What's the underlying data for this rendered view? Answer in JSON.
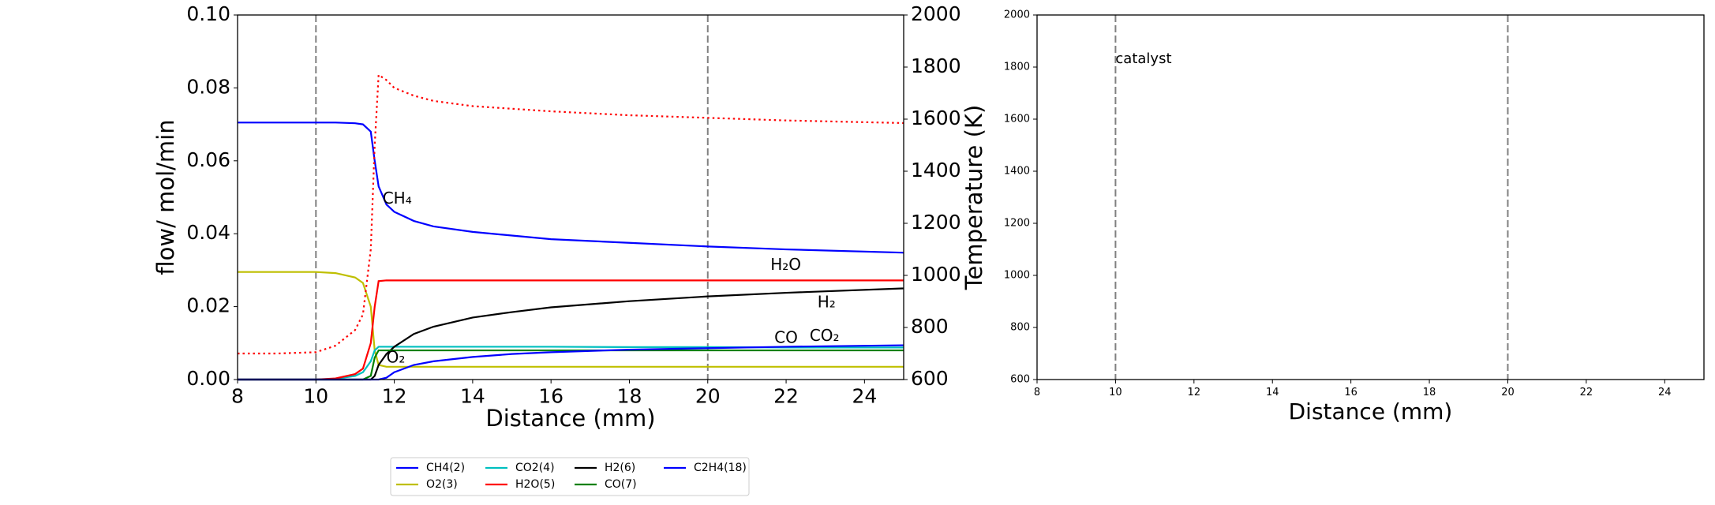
{
  "chart_data": [
    {
      "type": "line",
      "xlabel": "Distance (mm)",
      "ylabel": "flow/ mol/min",
      "y2label": "Temperature (K)",
      "xlim": [
        8,
        25
      ],
      "xticks": [
        8,
        10,
        12,
        14,
        16,
        18,
        20,
        22,
        24
      ],
      "ylim": [
        0,
        0.1
      ],
      "yticks": [
        {
          "value": 0,
          "label": "0.00"
        },
        {
          "value": 0.02,
          "label": "0.02"
        },
        {
          "value": 0.04,
          "label": "0.04"
        },
        {
          "value": 0.06,
          "label": "0.06"
        },
        {
          "value": 0.08,
          "label": "0.08"
        },
        {
          "value": 0.1,
          "label": "0.10"
        }
      ],
      "y2lim": [
        600,
        2000
      ],
      "y2ticks": [
        600,
        800,
        1000,
        1200,
        1400,
        1600,
        1800,
        2000
      ],
      "vlines": [
        10,
        20
      ],
      "x": [
        8,
        9,
        10,
        10.5,
        11,
        11.2,
        11.4,
        11.5,
        11.6,
        11.8,
        12,
        12.5,
        13,
        14,
        15,
        16,
        18,
        20,
        22,
        25
      ],
      "series": [
        {
          "name": "CH4(2)",
          "color": "#0000ff",
          "values": [
            0.0705,
            0.0705,
            0.0705,
            0.0705,
            0.0703,
            0.07,
            0.068,
            0.06,
            0.053,
            0.048,
            0.046,
            0.0435,
            0.042,
            0.0405,
            0.0395,
            0.0385,
            0.0375,
            0.0365,
            0.0357,
            0.0348
          ]
        },
        {
          "name": "O2(3)",
          "color": "#bfbf00",
          "values": [
            0.0295,
            0.0295,
            0.0295,
            0.0292,
            0.028,
            0.0265,
            0.02,
            0.008,
            0.004,
            0.0035,
            0.0035,
            0.0035,
            0.0035,
            0.0035,
            0.0035,
            0.0035,
            0.0035,
            0.0035,
            0.0035,
            0.0035
          ]
        },
        {
          "name": "CO2(4)",
          "color": "#00bfbf",
          "values": [
            0,
            0,
            0,
            0.0002,
            0.001,
            0.002,
            0.005,
            0.008,
            0.009,
            0.009,
            0.009,
            0.009,
            0.009,
            0.009,
            0.009,
            0.009,
            0.0089,
            0.0089,
            0.0088,
            0.0088
          ]
        },
        {
          "name": "H2O(5)",
          "color": "#ff0000",
          "values": [
            0,
            0,
            0,
            0.0003,
            0.0015,
            0.003,
            0.01,
            0.02,
            0.027,
            0.0272,
            0.0272,
            0.0272,
            0.0272,
            0.0272,
            0.0272,
            0.0272,
            0.0272,
            0.0272,
            0.0272,
            0.0272
          ]
        },
        {
          "name": "H2(6)",
          "color": "#000000",
          "values": [
            0,
            0,
            0,
            0,
            0,
            0,
            0,
            0.001,
            0.004,
            0.007,
            0.009,
            0.0125,
            0.0145,
            0.017,
            0.0185,
            0.0198,
            0.0215,
            0.0228,
            0.0238,
            0.025
          ]
        },
        {
          "name": "CO(7)",
          "color": "#008000",
          "values": [
            0,
            0,
            0,
            0,
            0,
            0,
            0.001,
            0.006,
            0.008,
            0.008,
            0.008,
            0.008,
            0.008,
            0.008,
            0.008,
            0.008,
            0.008,
            0.008,
            0.008,
            0.008
          ]
        },
        {
          "name": "C2H4(18)",
          "color": "#0000ff",
          "values": [
            0,
            0,
            0,
            0,
            0,
            0,
            0,
            0,
            0,
            0.0005,
            0.002,
            0.004,
            0.005,
            0.0062,
            0.007,
            0.0075,
            0.0082,
            0.0086,
            0.009,
            0.0094
          ]
        },
        {
          "color": "#ff0000",
          "axis": "y2",
          "linestyle": "dotted",
          "values": [
            700,
            700,
            705,
            730,
            790,
            850,
            1100,
            1500,
            1770,
            1750,
            1720,
            1690,
            1670,
            1650,
            1640,
            1630,
            1615,
            1605,
            1595,
            1585
          ]
        }
      ],
      "annotations": [
        {
          "text": "CH₄",
          "x": 11.7,
          "y": 0.0495,
          "color": "#0000ff"
        },
        {
          "text": "H₂O",
          "x": 21.6,
          "y": 0.0313,
          "color": "#ff0000"
        },
        {
          "text": "H₂",
          "x": 22.8,
          "y": 0.021,
          "color": "#000000"
        },
        {
          "text": "CO",
          "x": 21.7,
          "y": 0.0113,
          "color": "#008000"
        },
        {
          "text": "CO₂",
          "x": 22.6,
          "y": 0.0118,
          "color": "#00bfbf"
        },
        {
          "text": "O₂",
          "x": 11.8,
          "y": 0.0058,
          "color": "#bfbf00"
        }
      ],
      "legend": "below"
    },
    {
      "type": "line",
      "xlabel": "Distance (mm)",
      "xlim": [
        8,
        25
      ],
      "xticks": [
        8,
        10,
        12,
        14,
        16,
        18,
        20,
        22,
        24
      ],
      "ylim": [
        600,
        2000
      ],
      "yticks": [
        600,
        800,
        1000,
        1200,
        1400,
        1600,
        1800,
        2000
      ],
      "vlines": [
        10,
        20
      ],
      "series": [],
      "annotations": [
        {
          "text": "catalyst",
          "x": 10,
          "y": 1830,
          "color": "#000000"
        }
      ]
    }
  ]
}
